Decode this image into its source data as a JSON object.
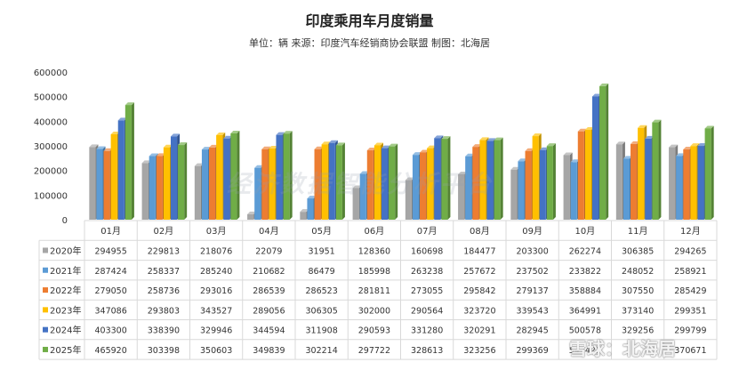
{
  "chart_data": {
    "type": "bar",
    "title": "印度乘用车月度销量",
    "subtitle": "单位：辆 来源：印度汽车经销商协会联盟 制图：北海居",
    "categories": [
      "01月",
      "02月",
      "03月",
      "04月",
      "05月",
      "06月",
      "07月",
      "08月",
      "09月",
      "10月",
      "11月",
      "12月"
    ],
    "ylim": [
      0,
      600000
    ],
    "yticks": [
      "0",
      "100000",
      "200000",
      "300000",
      "400000",
      "500000",
      "600000"
    ],
    "grid": false,
    "legend": "table-left",
    "series": [
      {
        "name": "2020年",
        "color": "#a6a6a6",
        "values": [
          294955,
          229813,
          218076,
          22079,
          31951,
          128360,
          160698,
          184477,
          203300,
          262274,
          306385,
          294265
        ]
      },
      {
        "name": "2021年",
        "color": "#5b9bd5",
        "values": [
          287424,
          258337,
          285240,
          210682,
          86479,
          185998,
          263238,
          257672,
          237502,
          233822,
          248052,
          258921
        ]
      },
      {
        "name": "2022年",
        "color": "#ed7d31",
        "values": [
          279050,
          258736,
          293016,
          286539,
          286523,
          281811,
          273055,
          295842,
          279137,
          358884,
          307550,
          285429
        ]
      },
      {
        "name": "2023年",
        "color": "#ffc000",
        "values": [
          347086,
          293803,
          343527,
          289056,
          306305,
          302000,
          290564,
          323720,
          339543,
          364991,
          373140,
          299351
        ]
      },
      {
        "name": "2024年",
        "color": "#4472c4",
        "values": [
          403300,
          338390,
          329946,
          344594,
          311908,
          290593,
          331280,
          320291,
          282945,
          500578,
          329256,
          299799
        ]
      },
      {
        "name": "2025年",
        "color": "#70ad47",
        "values": [
          465920,
          303398,
          350603,
          349839,
          302214,
          297722,
          328613,
          323256,
          299369,
          542429,
          395495,
          370671
        ]
      }
    ],
    "table_display": [
      [
        "294955",
        "229813",
        "218076",
        "22079",
        "31951",
        "128360",
        "160698",
        "184477",
        "203300",
        "262274",
        "306385",
        "294265"
      ],
      [
        "287424",
        "258337",
        "285240",
        "210682",
        "86479",
        "185998",
        "263238",
        "257672",
        "237502",
        "233822",
        "248052",
        "258921"
      ],
      [
        "279050",
        "258736",
        "293016",
        "286539",
        "286523",
        "281811",
        "273055",
        "295842",
        "279137",
        "358884",
        "307550",
        "285429"
      ],
      [
        "347086",
        "293803",
        "343527",
        "289056",
        "306305",
        "302000",
        "290564",
        "323720",
        "339543",
        "364991",
        "373140",
        "299351"
      ],
      [
        "403300",
        "338390",
        "329946",
        "344594",
        "311908",
        "290593",
        "331280",
        "320291",
        "282945",
        "500578",
        "329256",
        "299799"
      ],
      [
        "465920",
        "303398",
        "350603",
        "349839",
        "302214",
        "297722",
        "328613",
        "323256",
        "299369",
        "542429",
        "",
        "370671"
      ]
    ]
  },
  "watermark": {
    "text": "经济数据智能分析平台",
    "logo": "雪球：北海居"
  }
}
